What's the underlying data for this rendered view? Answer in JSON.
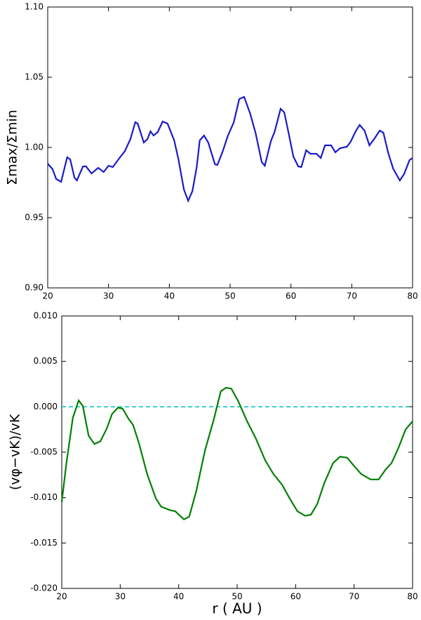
{
  "chart_data": [
    {
      "type": "line",
      "ylabel": "Σmax/Σmin",
      "x": [
        20,
        20.8,
        21.4,
        22.2,
        23.2,
        23.7,
        24.4,
        24.8,
        25.8,
        26.3,
        27.2,
        28.3,
        29.2,
        30,
        30.7,
        31.8,
        32.7,
        33.6,
        34.4,
        34.8,
        35.8,
        36.4,
        36.9,
        37.4,
        38.1,
        38.9,
        39.7,
        40.8,
        41.5,
        42.4,
        43.1,
        43.8,
        44.5,
        45,
        45.7,
        46.4,
        47.5,
        47.9,
        48.8,
        49.6,
        50.6,
        51.5,
        52.3,
        53.3,
        54.2,
        55.2,
        55.7,
        56.7,
        57.3,
        58.3,
        58.9,
        59.6,
        60.4,
        61.2,
        61.7,
        62.5,
        63.2,
        64.2,
        64.9,
        65.6,
        66.6,
        67.3,
        68.1,
        69.2,
        69.8,
        70.7,
        71.3,
        72.1,
        72.9,
        73.6,
        74.6,
        75.2,
        76,
        76.8,
        77.9,
        78.6,
        79.5,
        80
      ],
      "series": [
        {
          "color": "#1a1acc",
          "values": [
            0.9885,
            0.9845,
            0.9775,
            0.9755,
            0.993,
            0.9915,
            0.9785,
            0.9765,
            0.9865,
            0.9865,
            0.9815,
            0.9855,
            0.9825,
            0.987,
            0.986,
            0.9925,
            0.9975,
            1.006,
            1.018,
            1.017,
            1.0035,
            1.006,
            1.0115,
            1.0085,
            1.011,
            1.0185,
            1.017,
            1.005,
            0.9915,
            0.97,
            0.962,
            0.969,
            0.986,
            1.005,
            1.0085,
            1.0035,
            0.988,
            0.9875,
            0.9975,
            1.008,
            1.018,
            1.0345,
            1.036,
            1.024,
            1.01,
            0.9895,
            0.987,
            1.0045,
            1.011,
            1.0275,
            1.025,
            1.0105,
            0.9935,
            0.9865,
            0.986,
            0.998,
            0.9955,
            0.9955,
            0.9925,
            1.0015,
            1.0015,
            0.9965,
            0.9995,
            1.0005,
            1.004,
            1.012,
            1.016,
            1.012,
            1.0015,
            1.0055,
            1.012,
            1.0105,
            0.996,
            0.985,
            0.9765,
            0.981,
            0.991,
            0.9925
          ]
        }
      ],
      "xlim": [
        20,
        80
      ],
      "xticks": [
        20,
        30,
        40,
        50,
        60,
        70,
        80
      ],
      "ylim": [
        0.9,
        1.1
      ],
      "yticks": [
        {
          "value": 0.9,
          "label": "0.90"
        },
        0.95,
        {
          "value": 1,
          "label": "1.00"
        },
        1.05,
        {
          "value": 1.1,
          "label": "1.10"
        }
      ]
    },
    {
      "type": "line",
      "xlabel": "r ( AU )",
      "ylabel": "(vφ−vK)/vK",
      "x": [
        20,
        20.8,
        21.9,
        22.9,
        23.6,
        24.6,
        25.6,
        26.6,
        27.7,
        28.6,
        29.6,
        30.4,
        31.4,
        32.2,
        33.2,
        34.6,
        36.1,
        37,
        38.6,
        39.4,
        40.9,
        41.8,
        43,
        44.5,
        46,
        47.2,
        48.1,
        49,
        50.2,
        51.7,
        53.2,
        54.8,
        56.2,
        57.7,
        58.9,
        60.3,
        61.6,
        62.6,
        63.7,
        64.9,
        66.4,
        67.6,
        68.8,
        70.1,
        71.2,
        72.8,
        74.2,
        75.4,
        76.4,
        77.6,
        78.8,
        80
      ],
      "series": [
        {
          "color": "#008000",
          "values": [
            -0.0105,
            -0.0062,
            -0.0012,
            0.0007,
            0.0001,
            -0.0032,
            -0.0041,
            -0.0038,
            -0.0024,
            -0.0008,
            -0.0001,
            -0.0002,
            -0.0013,
            -0.002,
            -0.004,
            -0.0074,
            -0.0101,
            -0.011,
            -0.0114,
            -0.0115,
            -0.0124,
            -0.0121,
            -0.0093,
            -0.0048,
            -0.0014,
            0.0017,
            0.0021,
            0.002,
            0.0006,
            -0.0016,
            -0.0035,
            -0.0059,
            -0.0074,
            -0.0086,
            -0.01,
            -0.0115,
            -0.012,
            -0.0119,
            -0.0107,
            -0.0084,
            -0.0062,
            -0.0055,
            -0.0056,
            -0.0066,
            -0.0074,
            -0.008,
            -0.008,
            -0.0069,
            -0.0062,
            -0.0045,
            -0.0025,
            -0.0016
          ]
        }
      ],
      "reference_line": {
        "value": 0,
        "color": "#00bfbf"
      },
      "xlim": [
        20,
        80
      ],
      "xticks": [
        20,
        30,
        40,
        50,
        60,
        70,
        80
      ],
      "ylim": [
        -0.02,
        0.01
      ],
      "yticks": [
        {
          "value": -0.02,
          "label": "-0.020"
        },
        -0.015,
        {
          "value": -0.01,
          "label": "-0.010"
        },
        -0.005,
        {
          "value": 0,
          "label": "0.000"
        },
        0.005,
        {
          "value": 0.01,
          "label": "0.010"
        }
      ]
    }
  ]
}
